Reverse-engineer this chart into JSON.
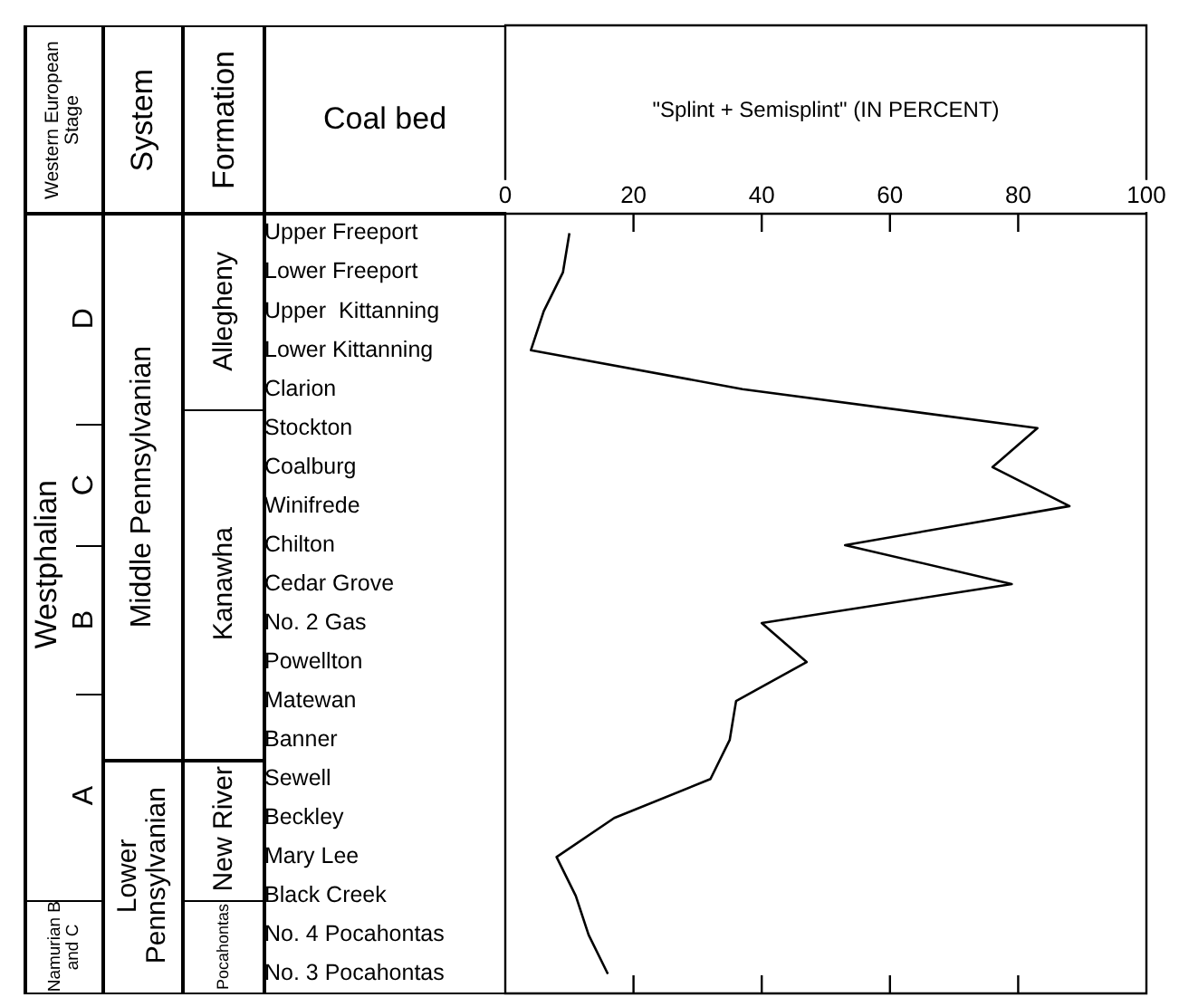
{
  "chart_data": {
    "type": "line",
    "orientation": "horizontal",
    "xlabel": "\"Splint + Semisplint\" (IN PERCENT)",
    "ylabel": "Coal bed",
    "categories": [
      "Upper Freeport",
      "Lower Freeport",
      "Upper  Kittanning",
      "Lower Kittanning",
      "Clarion",
      "Stockton",
      "Coalburg",
      "Winifrede",
      "Chilton",
      "Cedar Grove",
      "No. 2 Gas",
      "Powellton",
      "Matewan",
      "Banner",
      "Sewell",
      "Beckley",
      "Mary Lee",
      "Black Creek",
      "No. 4 Pocahontas",
      "No. 3 Pocahontas"
    ],
    "series": [
      {
        "color": "#000000",
        "values": [
          10,
          9,
          6,
          4,
          37,
          83,
          76,
          88,
          53,
          79,
          40,
          47,
          36,
          35,
          32,
          17,
          8,
          11,
          13,
          16
        ]
      }
    ],
    "xlim": [
      0,
      100
    ],
    "xticks": [
      0,
      20,
      40,
      60,
      80,
      100
    ],
    "grid": false,
    "legend": false,
    "marker": "none",
    "line_style": "solid",
    "annotations": [
      "Western European Stage",
      "System",
      "Formation",
      "Westphalian",
      "D",
      "C",
      "B",
      "A",
      "Namurian B and C",
      "Middle Pennsylvanian",
      "Lower Pennsylvanian",
      "Allegheny",
      "Kanawha",
      "New River",
      "Pocahontas"
    ]
  }
}
